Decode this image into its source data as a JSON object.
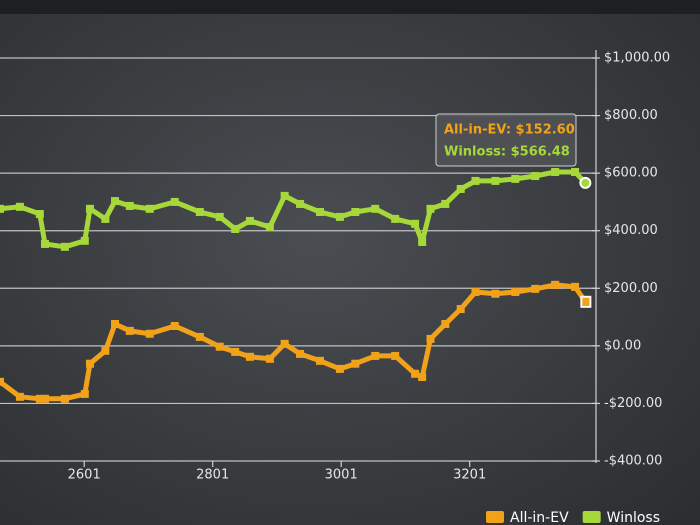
{
  "chart_data": {
    "type": "line",
    "x": [
      2470,
      2501,
      2532,
      2540,
      2571,
      2602,
      2610,
      2634,
      2649,
      2672,
      2703,
      2742,
      2781,
      2812,
      2836,
      2859,
      2890,
      2913,
      2937,
      2968,
      2999,
      3023,
      3054,
      3085,
      3116,
      3127,
      3140,
      3163,
      3187,
      3210,
      3241,
      3272,
      3303,
      3334,
      3365,
      3381
    ],
    "series": [
      {
        "name": "All-in-EV",
        "color": "#f2a219",
        "values": [
          -125,
          -177,
          -184,
          -184,
          -184,
          -167,
          -62,
          -17,
          76,
          52,
          42,
          69,
          31,
          -3,
          -21,
          -38,
          -45,
          7,
          -28,
          -52,
          -80,
          -62,
          -35,
          -35,
          -97,
          -108,
          24,
          76,
          128,
          187,
          181,
          187,
          198,
          212,
          205,
          153
        ]
      },
      {
        "name": "Winloss",
        "color": "#a6d83a",
        "values": [
          476,
          483,
          458,
          354,
          344,
          365,
          476,
          441,
          503,
          486,
          476,
          500,
          465,
          448,
          406,
          434,
          413,
          521,
          493,
          465,
          448,
          465,
          476,
          441,
          424,
          361,
          476,
          493,
          545,
          573,
          573,
          580,
          590,
          604,
          604,
          566
        ]
      }
    ],
    "xlim": [
      2470,
      3382
    ],
    "xticks": [
      2601,
      2801,
      3001,
      3201
    ],
    "ylim": [
      -400,
      1000
    ],
    "yticks": [
      {
        "value": -400,
        "label": "-$400.00"
      },
      {
        "value": -200,
        "label": "-$200.00"
      },
      {
        "value": 0,
        "label": "$0.00"
      },
      {
        "value": 200,
        "label": "$200.00"
      },
      {
        "value": 400,
        "label": "$400.00"
      },
      {
        "value": 600,
        "label": "$600.00"
      },
      {
        "value": 800,
        "label": "$800.00"
      },
      {
        "value": 1000,
        "label": "$1,000.00"
      }
    ],
    "grid": true,
    "legend": "bottom-right",
    "tooltip": [
      "All-in-EV: $152.60",
      "Winloss: $566.48"
    ]
  }
}
